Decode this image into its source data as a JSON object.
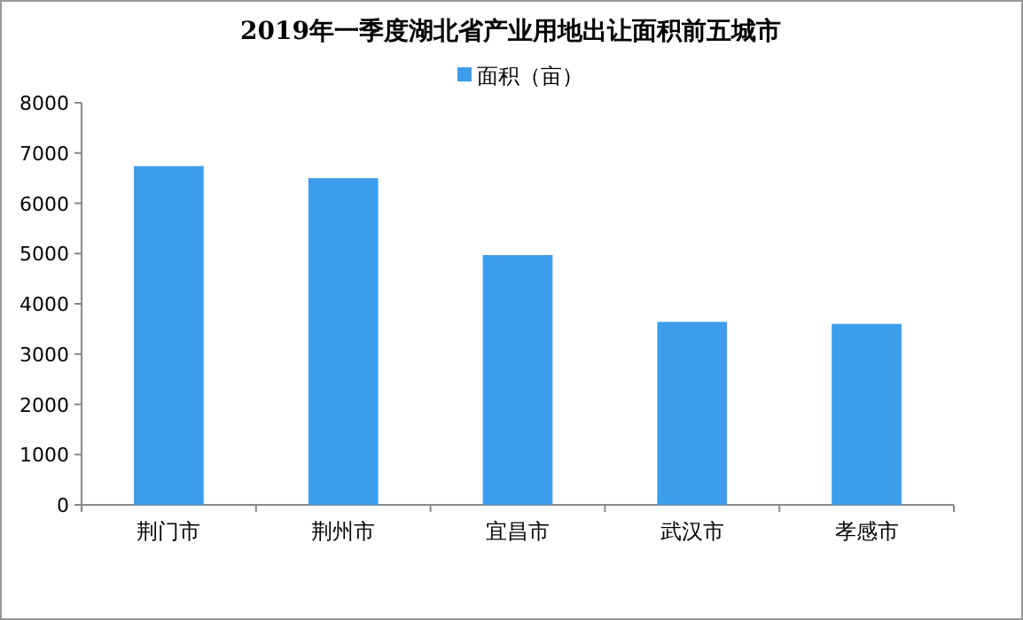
{
  "chart_data": {
    "type": "bar",
    "title": "2019年一季度湖北省产业用地出让面积前五城市",
    "categories": [
      "荆门市",
      "荆州市",
      "宜昌市",
      "武汉市",
      "孝感市"
    ],
    "series": [
      {
        "name": "面积（亩）",
        "color": "#3d9ded",
        "values": [
          6740,
          6500,
          4970,
          3640,
          3600
        ]
      }
    ],
    "ylim": [
      0,
      8000
    ],
    "yticks": [
      0,
      1000,
      2000,
      3000,
      4000,
      5000,
      6000,
      7000,
      8000
    ],
    "legend": "top",
    "grid": false
  }
}
